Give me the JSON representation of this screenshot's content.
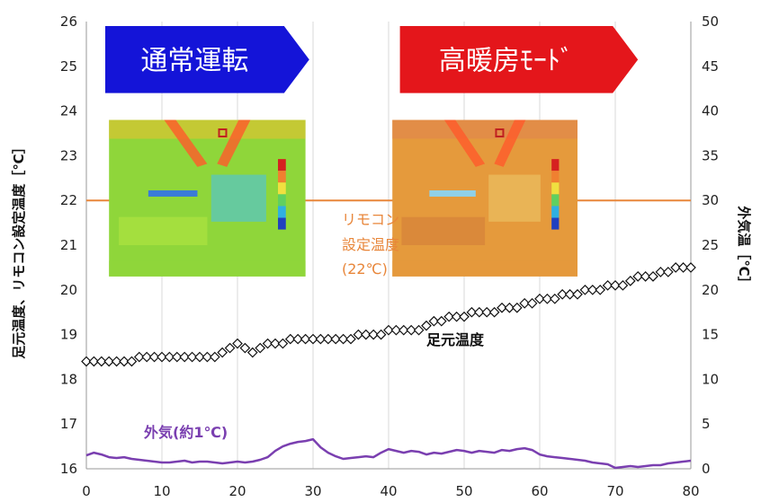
{
  "chart_data": {
    "type": "scatter",
    "x_ticks": [
      0,
      10,
      20,
      30,
      40,
      50,
      60,
      70,
      80
    ],
    "y_left_ticks": [
      16,
      17,
      18,
      19,
      20,
      21,
      22,
      23,
      24,
      25,
      26
    ],
    "y_right_ticks": [
      0,
      5,
      10,
      15,
      20,
      25,
      30,
      35,
      40,
      45,
      50
    ],
    "xlim": [
      0,
      80
    ],
    "ylim_left": [
      16,
      26
    ],
    "ylim_right": [
      0,
      50
    ],
    "ylabel_left": "足元温度、リモコン設定温度［℃］",
    "ylabel_right": "外気温［℃］",
    "grid_vertical": true,
    "setpoint": {
      "value": 22,
      "color": "#e8863a",
      "label_line1": "リモコン",
      "label_line2": "設定温度",
      "label_line3": "(22℃)"
    },
    "series": [
      {
        "name": "足元温度",
        "axis": "left",
        "marker": "diamond-open",
        "color": "#111111",
        "x": [
          0,
          1,
          2,
          3,
          4,
          5,
          6,
          7,
          8,
          9,
          10,
          11,
          12,
          13,
          14,
          15,
          16,
          17,
          18,
          19,
          20,
          21,
          22,
          23,
          24,
          25,
          26,
          27,
          28,
          29,
          30,
          31,
          32,
          33,
          34,
          35,
          36,
          37,
          38,
          39,
          40,
          41,
          42,
          43,
          44,
          45,
          46,
          47,
          48,
          49,
          50,
          51,
          52,
          53,
          54,
          55,
          56,
          57,
          58,
          59,
          60,
          61,
          62,
          63,
          64,
          65,
          66,
          67,
          68,
          69,
          70,
          71,
          72,
          73,
          74,
          75,
          76,
          77,
          78,
          79,
          80
        ],
        "values": [
          18.4,
          18.4,
          18.4,
          18.4,
          18.4,
          18.4,
          18.4,
          18.5,
          18.5,
          18.5,
          18.5,
          18.5,
          18.5,
          18.5,
          18.5,
          18.5,
          18.5,
          18.5,
          18.6,
          18.7,
          18.8,
          18.7,
          18.6,
          18.7,
          18.8,
          18.8,
          18.8,
          18.9,
          18.9,
          18.9,
          18.9,
          18.9,
          18.9,
          18.9,
          18.9,
          18.9,
          19.0,
          19.0,
          19.0,
          19.0,
          19.1,
          19.1,
          19.1,
          19.1,
          19.1,
          19.2,
          19.3,
          19.3,
          19.4,
          19.4,
          19.4,
          19.5,
          19.5,
          19.5,
          19.5,
          19.6,
          19.6,
          19.6,
          19.7,
          19.7,
          19.8,
          19.8,
          19.8,
          19.9,
          19.9,
          19.9,
          20.0,
          20.0,
          20.0,
          20.1,
          20.1,
          20.1,
          20.2,
          20.3,
          20.3,
          20.3,
          20.4,
          20.4,
          20.5,
          20.5,
          20.5
        ]
      },
      {
        "name": "外気(約1℃)",
        "axis": "right",
        "color": "#7a3fb0",
        "x": [
          0,
          1,
          2,
          3,
          4,
          5,
          6,
          7,
          8,
          9,
          10,
          11,
          12,
          13,
          14,
          15,
          16,
          17,
          18,
          19,
          20,
          21,
          22,
          23,
          24,
          25,
          26,
          27,
          28,
          29,
          30,
          31,
          32,
          33,
          34,
          35,
          36,
          37,
          38,
          39,
          40,
          41,
          42,
          43,
          44,
          45,
          46,
          47,
          48,
          49,
          50,
          51,
          52,
          53,
          54,
          55,
          56,
          57,
          58,
          59,
          60,
          61,
          62,
          63,
          64,
          65,
          66,
          67,
          68,
          69,
          70,
          71,
          72,
          73,
          74,
          75,
          76,
          77,
          78,
          79,
          80
        ],
        "values": [
          1.5,
          1.8,
          1.6,
          1.3,
          1.2,
          1.3,
          1.1,
          1.0,
          0.9,
          0.8,
          0.7,
          0.7,
          0.8,
          0.9,
          0.7,
          0.8,
          0.8,
          0.7,
          0.6,
          0.7,
          0.8,
          0.7,
          0.8,
          1.0,
          1.3,
          2.0,
          2.5,
          2.8,
          3.0,
          3.1,
          3.3,
          2.4,
          1.8,
          1.4,
          1.1,
          1.2,
          1.3,
          1.4,
          1.3,
          1.8,
          2.2,
          2.0,
          1.8,
          2.0,
          1.9,
          1.6,
          1.8,
          1.7,
          1.9,
          2.1,
          2.0,
          1.8,
          2.0,
          1.9,
          1.8,
          2.1,
          2.0,
          2.2,
          2.3,
          2.1,
          1.6,
          1.4,
          1.3,
          1.2,
          1.1,
          1.0,
          0.9,
          0.7,
          0.6,
          0.5,
          0.1,
          0.2,
          0.3,
          0.2,
          0.3,
          0.4,
          0.4,
          0.6,
          0.7,
          0.8,
          0.9
        ]
      }
    ],
    "series_label_foot": "足元温度",
    "series_label_outdoor": "外気(約1℃)",
    "banners": [
      {
        "text": "通常運転",
        "color": "#1414d8",
        "x_start": 2.5,
        "x_end": 29.5,
        "y_top": 25.9,
        "y_bottom": 24.4
      },
      {
        "text": "高暖房ﾓｰﾄﾞ",
        "color": "#e4161b",
        "x_start": 41.5,
        "x_end": 73.0,
        "y_top": 25.9,
        "y_bottom": 24.4
      }
    ],
    "thermal_images": [
      {
        "scene": "normal",
        "x_start": 3.0,
        "x_end": 29.0,
        "y_top": 23.8,
        "y_bottom": 20.3,
        "base": "#8fd63a",
        "header": "#f0c030"
      },
      {
        "scene": "high-heat",
        "x_start": 40.5,
        "x_end": 65.0,
        "y_top": 23.8,
        "y_bottom": 20.3,
        "base": "#e59a3c",
        "header": "#e08450"
      }
    ]
  }
}
